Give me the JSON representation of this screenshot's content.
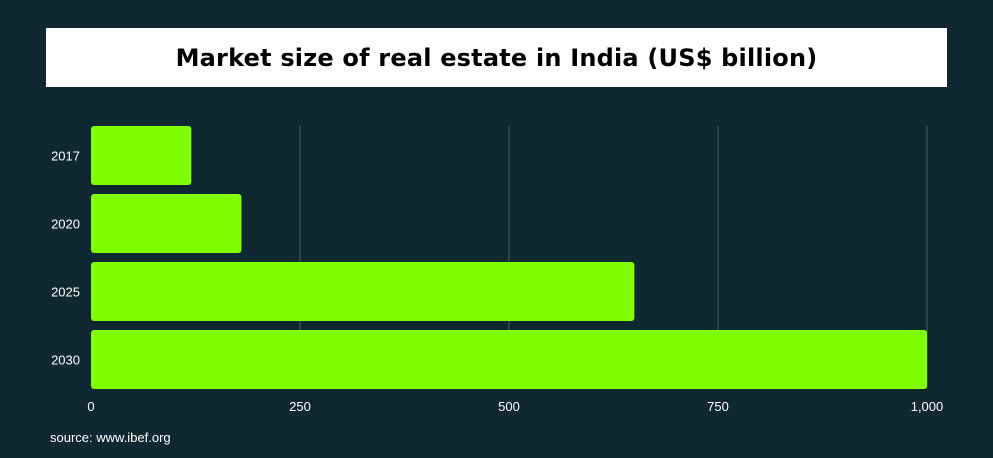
{
  "chart_data": {
    "type": "bar",
    "orientation": "horizontal",
    "title": "Market size of real estate in India (US$ billion)",
    "categories": [
      "2017",
      "2020",
      "2025",
      "2030"
    ],
    "values": [
      120,
      180,
      650,
      1000
    ],
    "xlim": [
      0,
      1000
    ],
    "xticks": [
      {
        "value": 0,
        "label": "0"
      },
      {
        "value": 250,
        "label": "250"
      },
      {
        "value": 500,
        "label": "500"
      },
      {
        "value": 750,
        "label": "750"
      },
      {
        "value": 1000,
        "label": "1,000"
      }
    ],
    "grid": "vertical",
    "legend": "none",
    "colors": {
      "bar": "#7fff00",
      "background": "#102832",
      "grid": "#4a5f66",
      "text": "#ffffff"
    }
  },
  "source": "source: www.ibef.org"
}
